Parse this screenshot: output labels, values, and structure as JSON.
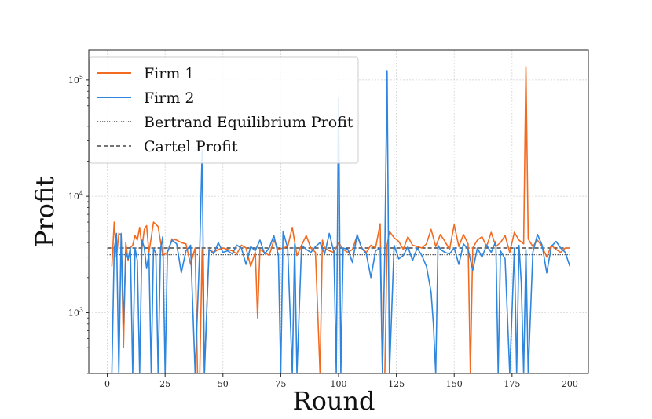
{
  "chart_data": {
    "type": "line",
    "title": "",
    "xlabel": "Round",
    "ylabel": "Profit",
    "xlim": [
      -8,
      208
    ],
    "ylim": [
      300,
      180000
    ],
    "yscale": "log",
    "x_ticks": [
      0,
      25,
      50,
      75,
      100,
      125,
      150,
      175,
      200
    ],
    "y_ticks": [
      {
        "value": 1000,
        "base": "10",
        "exp": "3"
      },
      {
        "value": 10000,
        "base": "10",
        "exp": "4"
      },
      {
        "value": 100000,
        "base": "10",
        "exp": "5"
      }
    ],
    "grid": true,
    "legend": "top-left",
    "series": [
      {
        "name": "Firm 1",
        "color": "#f26b21",
        "style": "solid",
        "x": [
          2,
          3,
          4,
          5,
          6,
          7,
          8,
          9,
          10,
          11,
          12,
          13,
          14,
          15,
          16,
          17,
          18,
          19,
          20,
          22,
          24,
          26,
          28,
          30,
          32,
          34,
          36,
          38,
          39,
          40,
          41,
          42,
          44,
          46,
          48,
          50,
          52,
          54,
          56,
          58,
          60,
          62,
          64,
          65,
          66,
          68,
          70,
          72,
          74,
          76,
          78,
          80,
          82,
          84,
          86,
          88,
          90,
          92,
          93,
          94,
          96,
          98,
          100,
          102,
          104,
          106,
          108,
          110,
          112,
          114,
          116,
          118,
          119,
          120,
          121,
          122,
          124,
          126,
          128,
          130,
          132,
          134,
          136,
          138,
          140,
          142,
          144,
          146,
          148,
          150,
          152,
          154,
          156,
          157,
          158,
          160,
          162,
          164,
          166,
          168,
          170,
          172,
          174,
          176,
          178,
          180,
          181,
          182,
          184,
          186,
          188,
          190,
          192,
          194,
          196,
          198,
          200
        ],
        "y": [
          2500,
          6000,
          3000,
          4800,
          4600,
          500,
          4000,
          2800,
          3600,
          3800,
          4600,
          4200,
          5400,
          3600,
          5200,
          5600,
          3300,
          4400,
          6000,
          5500,
          3100,
          3300,
          4300,
          4200,
          4000,
          3900,
          2600,
          3600,
          300,
          300,
          3500,
          300,
          3500,
          3300,
          3500,
          3600,
          3500,
          3400,
          3200,
          3800,
          3600,
          2500,
          3300,
          900,
          3500,
          3300,
          3100,
          4200,
          3500,
          3600,
          3700,
          5400,
          3100,
          3800,
          4600,
          3600,
          3300,
          300,
          4200,
          3600,
          3400,
          3300,
          4000,
          3500,
          3300,
          3500,
          4600,
          3600,
          3300,
          3800,
          3600,
          5800,
          300,
          300,
          3800,
          5000,
          4400,
          4100,
          3500,
          4500,
          3800,
          3700,
          3600,
          3900,
          5200,
          3700,
          4700,
          4100,
          3500,
          5700,
          3700,
          4700,
          3900,
          300,
          3600,
          4200,
          4500,
          3700,
          4900,
          3700,
          4000,
          4600,
          3300,
          4900,
          4200,
          3900,
          130000,
          4300,
          3700,
          4200,
          3700,
          3000,
          3800,
          3500,
          3300,
          3600,
          3600
        ]
      },
      {
        "name": "Firm 2",
        "color": "#2e86de",
        "style": "solid",
        "x": [
          2,
          3,
          4,
          5,
          6,
          7,
          8,
          9,
          10,
          11,
          12,
          13,
          14,
          15,
          16,
          17,
          18,
          19,
          20,
          21,
          22,
          23,
          24,
          25,
          26,
          28,
          30,
          32,
          34,
          36,
          38,
          40,
          41,
          42,
          44,
          46,
          48,
          50,
          52,
          54,
          56,
          58,
          60,
          62,
          64,
          66,
          68,
          70,
          72,
          74,
          75,
          76,
          78,
          80,
          81,
          82,
          84,
          86,
          88,
          90,
          92,
          94,
          96,
          98,
          99,
          100,
          101,
          102,
          104,
          106,
          108,
          110,
          112,
          114,
          116,
          118,
          119,
          120,
          121,
          122,
          124,
          126,
          128,
          130,
          132,
          134,
          136,
          138,
          140,
          141,
          142,
          143,
          144,
          146,
          148,
          150,
          152,
          154,
          156,
          158,
          160,
          162,
          164,
          166,
          168,
          169,
          170,
          172,
          174,
          176,
          177,
          178,
          179,
          180,
          181,
          182,
          184,
          186,
          188,
          190,
          192,
          194,
          196,
          198,
          200
        ],
        "y": [
          300,
          3500,
          4800,
          300,
          4800,
          800,
          3300,
          2900,
          3600,
          300,
          3600,
          2800,
          300,
          4200,
          3600,
          2400,
          3200,
          300,
          3600,
          3200,
          300,
          3500,
          4500,
          300,
          3300,
          4200,
          3900,
          2200,
          3400,
          3800,
          300,
          3600,
          25000,
          300,
          3500,
          3200,
          4000,
          3300,
          3400,
          3200,
          3800,
          3600,
          2600,
          3700,
          3400,
          4200,
          3200,
          3600,
          4600,
          3100,
          300,
          5000,
          3600,
          300,
          3900,
          300,
          3800,
          3500,
          3300,
          3700,
          4000,
          3200,
          4800,
          3300,
          300,
          70000,
          300,
          3600,
          3500,
          2700,
          4700,
          3600,
          3200,
          2000,
          3400,
          3600,
          300,
          3500,
          120000,
          300,
          3800,
          2900,
          3100,
          3700,
          2800,
          3600,
          3100,
          2500,
          1500,
          800,
          300,
          3800,
          3500,
          3300,
          3200,
          3600,
          2600,
          3900,
          3500,
          2300,
          3600,
          3000,
          3800,
          3300,
          4100,
          300,
          3400,
          2900,
          300,
          3600,
          300,
          3800,
          1800,
          300,
          3500,
          300,
          3300,
          4700,
          3800,
          2200,
          3700,
          4100,
          3600,
          3300,
          2500
        ]
      },
      {
        "name": "Bertrand Equilibrium Profit",
        "color": "#333333",
        "style": "dotted",
        "x": [
          0,
          200
        ],
        "y": [
          3150,
          3150
        ]
      },
      {
        "name": "Cartel Profit",
        "color": "#222222",
        "style": "dashed",
        "x": [
          0,
          200
        ],
        "y": [
          3600,
          3600
        ]
      }
    ]
  }
}
